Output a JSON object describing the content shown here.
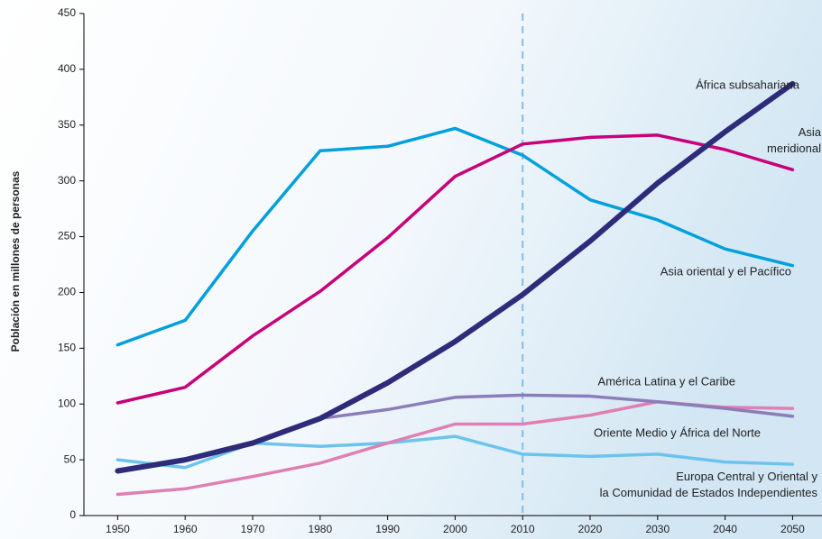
{
  "chart_data": {
    "type": "line",
    "y_axis_label": "Población en millones de personas",
    "x": [
      1950,
      1960,
      1970,
      1980,
      1990,
      2000,
      2010,
      2020,
      2030,
      2040,
      2050
    ],
    "xlim": [
      1945,
      2055
    ],
    "xticks": [
      1950,
      1960,
      1970,
      1980,
      1990,
      2000,
      2010,
      2020,
      2030,
      2040,
      2050
    ],
    "ylim": [
      0,
      450
    ],
    "yticks": [
      0,
      50,
      100,
      150,
      200,
      250,
      300,
      350,
      400,
      450
    ],
    "reference_line_x": 2010,
    "grid": false,
    "series": [
      {
        "name": "Europa Central y Oriental y la Comunidad de Estados Independientes",
        "color": "#6cc3ee",
        "values": [
          50,
          43,
          65,
          62,
          65,
          71,
          55,
          53,
          55,
          48,
          46
        ]
      },
      {
        "name": "Oriente Medio y África del Norte",
        "color": "#e07fb2",
        "values": [
          19,
          24,
          35,
          47,
          65,
          82,
          82,
          90,
          102,
          97,
          96
        ]
      },
      {
        "name": "América Latina y el Caribe",
        "color": "#8b7db9",
        "values": [
          40,
          50,
          65,
          87,
          95,
          106,
          108,
          107,
          102,
          96,
          89
        ]
      },
      {
        "name": "Asia oriental y el Pacífico",
        "color": "#00a0dc",
        "values": [
          153,
          175,
          255,
          327,
          331,
          347,
          323,
          283,
          265,
          239,
          224
        ]
      },
      {
        "name": "Asia meridional",
        "color": "#c8007a",
        "values": [
          101,
          115,
          161,
          201,
          249,
          304,
          333,
          339,
          341,
          328,
          310
        ]
      },
      {
        "name": "África subsahariana",
        "color": "#2e2b7a",
        "values": [
          40,
          50,
          65,
          87,
          119,
          156,
          198,
          246,
          298,
          344,
          387
        ]
      }
    ]
  }
}
